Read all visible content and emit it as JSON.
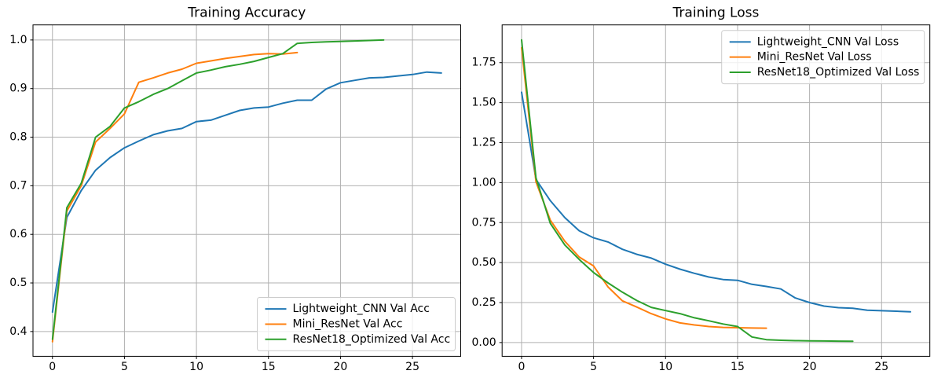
{
  "figure": {
    "background": "#ffffff",
    "grid_color": "#b0b0b0",
    "spine_color": "#000000",
    "legend_edge_color": "#cccccc"
  },
  "chart_data": [
    {
      "id": "training-accuracy",
      "type": "line",
      "title": "Training Accuracy",
      "xlabel": "",
      "ylabel": "",
      "xlim": [
        -1.35,
        28.35
      ],
      "ylim": [
        0.349,
        1.031
      ],
      "xticks": [
        0,
        5,
        10,
        15,
        20,
        25
      ],
      "xtick_labels": [
        "0",
        "5",
        "10",
        "15",
        "20",
        "25"
      ],
      "yticks": [
        0.4,
        0.5,
        0.6,
        0.7,
        0.8,
        0.9,
        1.0
      ],
      "ytick_labels": [
        "0.4",
        "0.5",
        "0.6",
        "0.7",
        "0.8",
        "0.9",
        "1.0"
      ],
      "grid": true,
      "legend_position": "lower right",
      "series": [
        {
          "name": "Lightweight_CNN Val Acc",
          "color": "#1f77b4",
          "x": [
            0,
            1,
            2,
            3,
            4,
            5,
            6,
            7,
            8,
            9,
            10,
            11,
            12,
            13,
            14,
            15,
            16,
            17,
            18,
            19,
            20,
            21,
            22,
            23,
            24,
            25,
            26,
            27
          ],
          "values": [
            0.44,
            0.635,
            0.69,
            0.732,
            0.758,
            0.778,
            0.792,
            0.805,
            0.813,
            0.818,
            0.832,
            0.835,
            0.845,
            0.855,
            0.86,
            0.862,
            0.87,
            0.876,
            0.876,
            0.899,
            0.912,
            0.917,
            0.922,
            0.923,
            0.926,
            0.929,
            0.934,
            0.932
          ]
        },
        {
          "name": "Mini_ResNet Val Acc",
          "color": "#ff7f0e",
          "x": [
            0,
            1,
            2,
            3,
            4,
            5,
            6,
            7,
            8,
            9,
            10,
            11,
            12,
            13,
            14,
            15,
            16,
            17
          ],
          "values": [
            0.379,
            0.648,
            0.7,
            0.79,
            0.818,
            0.848,
            0.913,
            0.922,
            0.932,
            0.94,
            0.952,
            0.957,
            0.962,
            0.966,
            0.97,
            0.972,
            0.971,
            0.974
          ]
        },
        {
          "name": "ResNet18_Optimized Val Acc",
          "color": "#2ca02c",
          "x": [
            0,
            1,
            2,
            3,
            4,
            5,
            6,
            7,
            8,
            9,
            10,
            11,
            12,
            13,
            14,
            15,
            16,
            17,
            18,
            19,
            20,
            21,
            22,
            23
          ],
          "values": [
            0.384,
            0.655,
            0.705,
            0.8,
            0.822,
            0.86,
            0.873,
            0.888,
            0.9,
            0.916,
            0.932,
            0.938,
            0.945,
            0.95,
            0.956,
            0.964,
            0.972,
            0.993,
            0.995,
            0.996,
            0.997,
            0.998,
            0.999,
            1.0
          ]
        }
      ]
    },
    {
      "id": "training-loss",
      "type": "line",
      "title": "Training Loss",
      "xlabel": "",
      "ylabel": "",
      "xlim": [
        -1.35,
        28.35
      ],
      "ylim": [
        -0.086,
        1.986
      ],
      "xticks": [
        0,
        5,
        10,
        15,
        20,
        25
      ],
      "xtick_labels": [
        "0",
        "5",
        "10",
        "15",
        "20",
        "25"
      ],
      "yticks": [
        0.0,
        0.25,
        0.5,
        0.75,
        1.0,
        1.25,
        1.5,
        1.75
      ],
      "ytick_labels": [
        "0.00",
        "0.25",
        "0.50",
        "0.75",
        "1.00",
        "1.25",
        "1.50",
        "1.75"
      ],
      "grid": true,
      "legend_position": "upper right",
      "series": [
        {
          "name": "Lightweight_CNN Val Loss",
          "color": "#1f77b4",
          "x": [
            0,
            1,
            2,
            3,
            4,
            5,
            6,
            7,
            8,
            9,
            10,
            11,
            12,
            13,
            14,
            15,
            16,
            17,
            18,
            19,
            20,
            21,
            22,
            23,
            24,
            25,
            26,
            27
          ],
          "values": [
            1.565,
            1.02,
            0.887,
            0.781,
            0.699,
            0.655,
            0.629,
            0.583,
            0.552,
            0.528,
            0.49,
            0.459,
            0.433,
            0.41,
            0.394,
            0.389,
            0.364,
            0.351,
            0.335,
            0.279,
            0.25,
            0.228,
            0.218,
            0.214,
            0.202,
            0.199,
            0.196,
            0.192
          ]
        },
        {
          "name": "Mini_ResNet Val Loss",
          "color": "#ff7f0e",
          "x": [
            0,
            1,
            2,
            3,
            4,
            5,
            6,
            7,
            8,
            9,
            10,
            11,
            12,
            13,
            14,
            15,
            16,
            17
          ],
          "values": [
            1.843,
            1.005,
            0.765,
            0.634,
            0.535,
            0.479,
            0.348,
            0.261,
            0.222,
            0.181,
            0.148,
            0.123,
            0.11,
            0.1,
            0.095,
            0.093,
            0.091,
            0.09
          ]
        },
        {
          "name": "ResNet18_Optimized Val Loss",
          "color": "#2ca02c",
          "x": [
            0,
            1,
            2,
            3,
            4,
            5,
            6,
            7,
            8,
            9,
            10,
            11,
            12,
            13,
            14,
            15,
            16,
            17,
            18,
            19,
            20,
            21,
            22,
            23
          ],
          "values": [
            1.892,
            1.03,
            0.745,
            0.61,
            0.52,
            0.438,
            0.373,
            0.315,
            0.263,
            0.22,
            0.2,
            0.181,
            0.155,
            0.136,
            0.116,
            0.1,
            0.035,
            0.018,
            0.014,
            0.012,
            0.011,
            0.01,
            0.009,
            0.008
          ]
        }
      ]
    }
  ]
}
